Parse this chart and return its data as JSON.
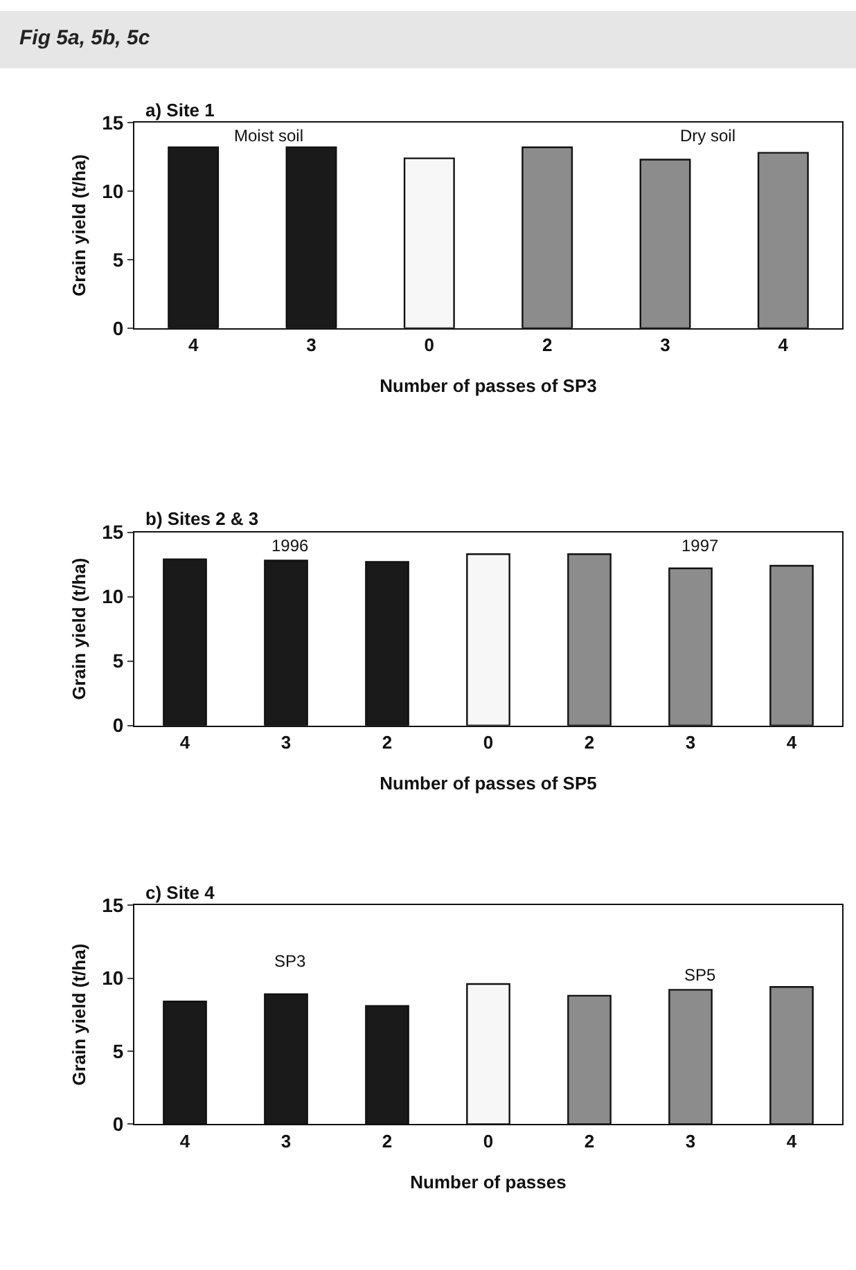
{
  "chart_data": [
    {
      "type": "bar",
      "title": "Fig 5a, 5b, 5c",
      "subtitle": "a) Site 1",
      "xlabel": "Number of passes of SP3",
      "ylabel": "Grain yield (t/ha)",
      "categories": [
        "4",
        "3",
        "0",
        "2",
        "3",
        "4"
      ],
      "values": [
        13.2,
        13.2,
        12.4,
        13.2,
        12.3,
        12.8
      ],
      "colors": [
        "#1a1a1a",
        "#1a1a1a",
        "#f7f7f7",
        "#8c8c8c",
        "#8c8c8c",
        "#8c8c8c"
      ],
      "ylim": [
        0,
        15
      ],
      "yticks": [
        0,
        5,
        10,
        15
      ],
      "annotations": [
        "Moist soil",
        "Dry soil"
      ]
    },
    {
      "type": "bar",
      "subtitle": "b) Sites 2 & 3",
      "xlabel": "Number of passes of SP5",
      "ylabel": "Grain yield (t/ha)",
      "categories": [
        "4",
        "3",
        "2",
        "0",
        "2",
        "3",
        "4"
      ],
      "values": [
        12.9,
        12.8,
        12.7,
        13.3,
        13.3,
        12.2,
        12.4
      ],
      "colors": [
        "#1a1a1a",
        "#1a1a1a",
        "#1a1a1a",
        "#f7f7f7",
        "#8c8c8c",
        "#8c8c8c",
        "#8c8c8c"
      ],
      "ylim": [
        0,
        15
      ],
      "yticks": [
        0,
        5,
        10,
        15
      ],
      "annotations": [
        "1996",
        "1997"
      ]
    },
    {
      "type": "bar",
      "subtitle": "c) Site 4",
      "xlabel": "Number of passes",
      "ylabel": "Grain yield (t/ha)",
      "categories": [
        "4",
        "3",
        "2",
        "0",
        "2",
        "3",
        "4"
      ],
      "values": [
        8.4,
        8.9,
        8.1,
        9.6,
        8.8,
        9.2,
        9.4
      ],
      "colors": [
        "#1a1a1a",
        "#1a1a1a",
        "#1a1a1a",
        "#f7f7f7",
        "#8c8c8c",
        "#8c8c8c",
        "#8c8c8c"
      ],
      "ylim": [
        0,
        15
      ],
      "yticks": [
        0,
        5,
        10,
        15
      ],
      "annotations": [
        "SP3",
        "SP5"
      ]
    }
  ]
}
